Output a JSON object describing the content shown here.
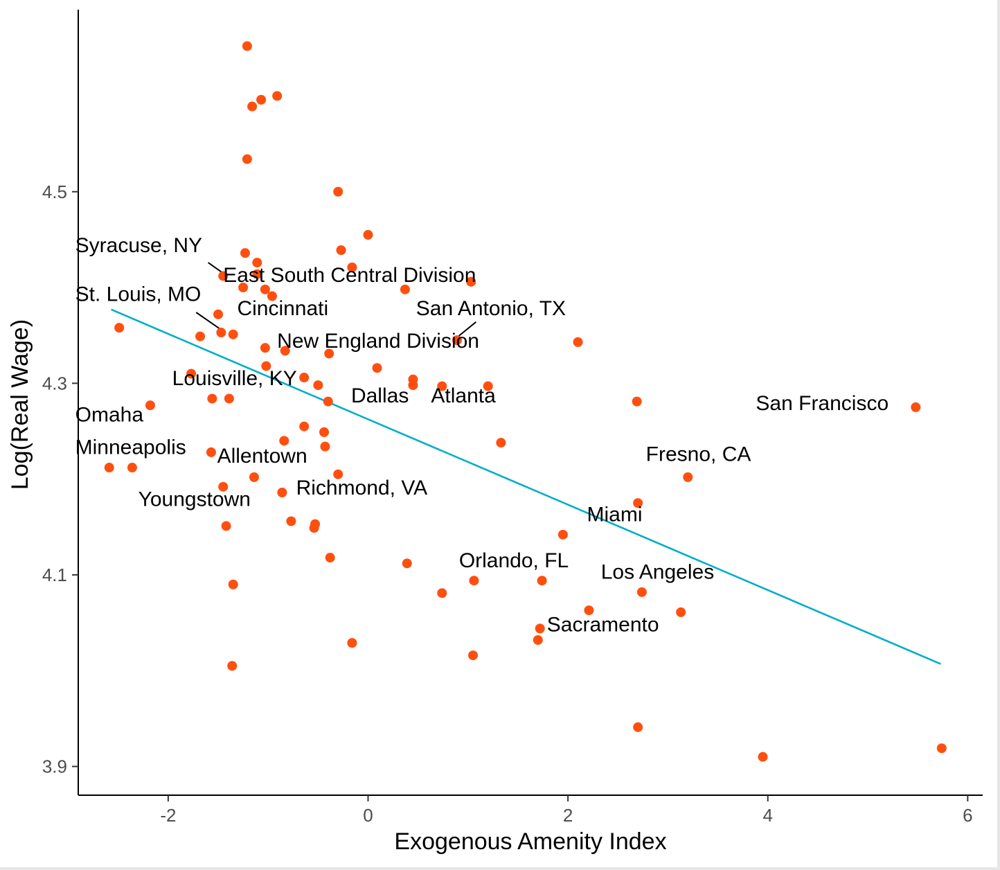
{
  "chart_data": {
    "type": "scatter",
    "xlabel": "Exogenous Amenity Index",
    "ylabel": "Log(Real Wage)",
    "xlim": [
      -2.9,
      6.15
    ],
    "ylim": [
      3.87,
      4.69
    ],
    "x_ticks": [
      -2,
      0,
      2,
      4,
      6
    ],
    "x_tick_labels": [
      "-2",
      "0",
      "2",
      "4",
      "6"
    ],
    "y_ticks": [
      3.9,
      4.1,
      4.3,
      4.5
    ],
    "y_tick_labels": [
      "3.9",
      "4.1",
      "4.3",
      "4.5"
    ],
    "point_color": "#FF4F0F",
    "line_color": "#00AEC8",
    "grid": false,
    "legend": "none",
    "fit_line": {
      "x": [
        -2.57,
        5.73
      ],
      "y": [
        4.377,
        4.007
      ]
    },
    "points": [
      {
        "x": -1.21,
        "y": 4.652
      },
      {
        "x": -0.91,
        "y": 4.6
      },
      {
        "x": -1.07,
        "y": 4.596
      },
      {
        "x": -1.16,
        "y": 4.589
      },
      {
        "x": -1.21,
        "y": 4.534
      },
      {
        "x": -0.3,
        "y": 4.5
      },
      {
        "x": 0.0,
        "y": 4.455
      },
      {
        "x": -0.27,
        "y": 4.439
      },
      {
        "x": -1.23,
        "y": 4.436
      },
      {
        "x": -1.11,
        "y": 4.426
      },
      {
        "x": -0.16,
        "y": 4.421
      },
      {
        "x": -1.11,
        "y": 4.414
      },
      {
        "x": -1.45,
        "y": 4.412
      },
      {
        "x": 1.03,
        "y": 4.406
      },
      {
        "x": -1.25,
        "y": 4.4
      },
      {
        "x": -1.03,
        "y": 4.398
      },
      {
        "x": 0.37,
        "y": 4.398
      },
      {
        "x": -0.96,
        "y": 4.391
      },
      {
        "x": -1.5,
        "y": 4.372
      },
      {
        "x": -2.49,
        "y": 4.358
      },
      {
        "x": -1.47,
        "y": 4.353
      },
      {
        "x": -1.35,
        "y": 4.351
      },
      {
        "x": -1.68,
        "y": 4.349
      },
      {
        "x": 0.89,
        "y": 4.345
      },
      {
        "x": 2.1,
        "y": 4.343
      },
      {
        "x": -1.03,
        "y": 4.337
      },
      {
        "x": -0.83,
        "y": 4.334
      },
      {
        "x": -0.39,
        "y": 4.331
      },
      {
        "x": -1.02,
        "y": 4.318
      },
      {
        "x": 0.09,
        "y": 4.316
      },
      {
        "x": -1.77,
        "y": 4.31
      },
      {
        "x": -0.64,
        "y": 4.306
      },
      {
        "x": 0.45,
        "y": 4.304
      },
      {
        "x": -0.5,
        "y": 4.298
      },
      {
        "x": 0.45,
        "y": 4.298
      },
      {
        "x": 0.74,
        "y": 4.297
      },
      {
        "x": 1.2,
        "y": 4.297
      },
      {
        "x": -1.56,
        "y": 4.284
      },
      {
        "x": -1.39,
        "y": 4.284
      },
      {
        "x": -0.4,
        "y": 4.281
      },
      {
        "x": 2.69,
        "y": 4.281
      },
      {
        "x": -2.18,
        "y": 4.277
      },
      {
        "x": 5.48,
        "y": 4.275
      },
      {
        "x": -0.64,
        "y": 4.255
      },
      {
        "x": -0.44,
        "y": 4.249
      },
      {
        "x": -0.84,
        "y": 4.24
      },
      {
        "x": 1.33,
        "y": 4.238
      },
      {
        "x": -0.43,
        "y": 4.234
      },
      {
        "x": -1.57,
        "y": 4.228
      },
      {
        "x": -2.59,
        "y": 4.212
      },
      {
        "x": -2.36,
        "y": 4.212
      },
      {
        "x": -0.3,
        "y": 4.205
      },
      {
        "x": 3.2,
        "y": 4.202
      },
      {
        "x": -1.14,
        "y": 4.202
      },
      {
        "x": -1.45,
        "y": 4.192
      },
      {
        "x": -0.86,
        "y": 4.186
      },
      {
        "x": 2.7,
        "y": 4.175
      },
      {
        "x": -0.77,
        "y": 4.156
      },
      {
        "x": -0.53,
        "y": 4.153
      },
      {
        "x": -1.42,
        "y": 4.151
      },
      {
        "x": -0.54,
        "y": 4.149
      },
      {
        "x": 1.95,
        "y": 4.142
      },
      {
        "x": -0.38,
        "y": 4.118
      },
      {
        "x": 0.39,
        "y": 4.112
      },
      {
        "x": 1.06,
        "y": 4.094
      },
      {
        "x": 1.74,
        "y": 4.094
      },
      {
        "x": -1.35,
        "y": 4.09
      },
      {
        "x": 0.74,
        "y": 4.081
      },
      {
        "x": 2.74,
        "y": 4.082
      },
      {
        "x": 2.21,
        "y": 4.063
      },
      {
        "x": 3.13,
        "y": 4.061
      },
      {
        "x": 1.72,
        "y": 4.044
      },
      {
        "x": 1.7,
        "y": 4.032
      },
      {
        "x": -0.16,
        "y": 4.029
      },
      {
        "x": 1.05,
        "y": 4.016
      },
      {
        "x": -1.36,
        "y": 4.005
      },
      {
        "x": 2.7,
        "y": 3.941
      },
      {
        "x": 5.74,
        "y": 3.919
      },
      {
        "x": 3.95,
        "y": 3.91
      }
    ],
    "annotations": [
      {
        "text": "Syracuse, NY",
        "x": -1.45,
        "y": 4.412,
        "lx": -2.93,
        "ly": 4.437,
        "anchor": "start",
        "leader": true,
        "lead_from": [
          -1.6,
          4.426
        ]
      },
      {
        "text": "East South Central Division",
        "x": -1.11,
        "y": 4.414,
        "lx": -1.45,
        "ly": 4.406,
        "anchor": "start",
        "leader": false
      },
      {
        "text": "St. Louis, MO",
        "x": -1.47,
        "y": 4.353,
        "lx": -2.93,
        "ly": 4.386,
        "anchor": "start",
        "leader": true,
        "lead_from": [
          -1.72,
          4.374
        ]
      },
      {
        "text": "Cincinnati",
        "x": -1.35,
        "y": 4.351,
        "lx": -1.31,
        "ly": 4.371,
        "anchor": "start",
        "leader": false
      },
      {
        "text": "San Antonio, TX",
        "x": 0.89,
        "y": 4.345,
        "lx": 0.48,
        "ly": 4.371,
        "anchor": "start",
        "leader": true,
        "lead_from": [
          1.08,
          4.364
        ]
      },
      {
        "text": "New England Division",
        "x": -0.83,
        "y": 4.334,
        "lx": -0.91,
        "ly": 4.337,
        "anchor": "start",
        "leader": false
      },
      {
        "text": "Louisville, KY",
        "x": -0.64,
        "y": 4.306,
        "lx": -1.96,
        "ly": 4.298,
        "anchor": "start",
        "leader": false
      },
      {
        "text": "Dallas",
        "x": 0.45,
        "y": 4.298,
        "lx": -0.17,
        "ly": 4.28,
        "anchor": "start",
        "leader": false
      },
      {
        "text": "Atlanta",
        "x": 0.74,
        "y": 4.297,
        "lx": 0.63,
        "ly": 4.28,
        "anchor": "start",
        "leader": false
      },
      {
        "text": "San Francisco",
        "x": 5.48,
        "y": 4.275,
        "lx": 3.88,
        "ly": 4.272,
        "anchor": "start",
        "leader": false
      },
      {
        "text": "Omaha",
        "x": -2.18,
        "y": 4.277,
        "lx": -2.93,
        "ly": 4.26,
        "anchor": "start",
        "leader": false
      },
      {
        "text": "Minneapolis",
        "x": -2.36,
        "y": 4.212,
        "lx": -2.93,
        "ly": 4.226,
        "anchor": "start",
        "leader": false
      },
      {
        "text": "Fresno, CA",
        "x": 3.2,
        "y": 4.202,
        "lx": 2.78,
        "ly": 4.219,
        "anchor": "start",
        "leader": false
      },
      {
        "text": "Allentown",
        "x": -1.14,
        "y": 4.202,
        "lx": -1.51,
        "ly": 4.217,
        "anchor": "start",
        "leader": false
      },
      {
        "text": "Richmond, VA",
        "x": -0.86,
        "y": 4.186,
        "lx": -0.72,
        "ly": 4.184,
        "anchor": "start",
        "leader": false
      },
      {
        "text": "Youngstown",
        "x": -1.42,
        "y": 4.151,
        "lx": -2.3,
        "ly": 4.172,
        "anchor": "start",
        "leader": false
      },
      {
        "text": "Miami",
        "x": 1.95,
        "y": 4.142,
        "lx": 2.19,
        "ly": 4.156,
        "anchor": "start",
        "leader": false
      },
      {
        "text": "Orlando, FL",
        "x": 1.74,
        "y": 4.094,
        "lx": 0.91,
        "ly": 4.108,
        "anchor": "start",
        "leader": false
      },
      {
        "text": "Los Angeles",
        "x": 2.74,
        "y": 4.082,
        "lx": 2.33,
        "ly": 4.096,
        "anchor": "start",
        "leader": false
      },
      {
        "text": "Sacramento",
        "x": 1.72,
        "y": 4.044,
        "lx": 1.79,
        "ly": 4.041,
        "anchor": "start",
        "leader": false
      }
    ]
  }
}
